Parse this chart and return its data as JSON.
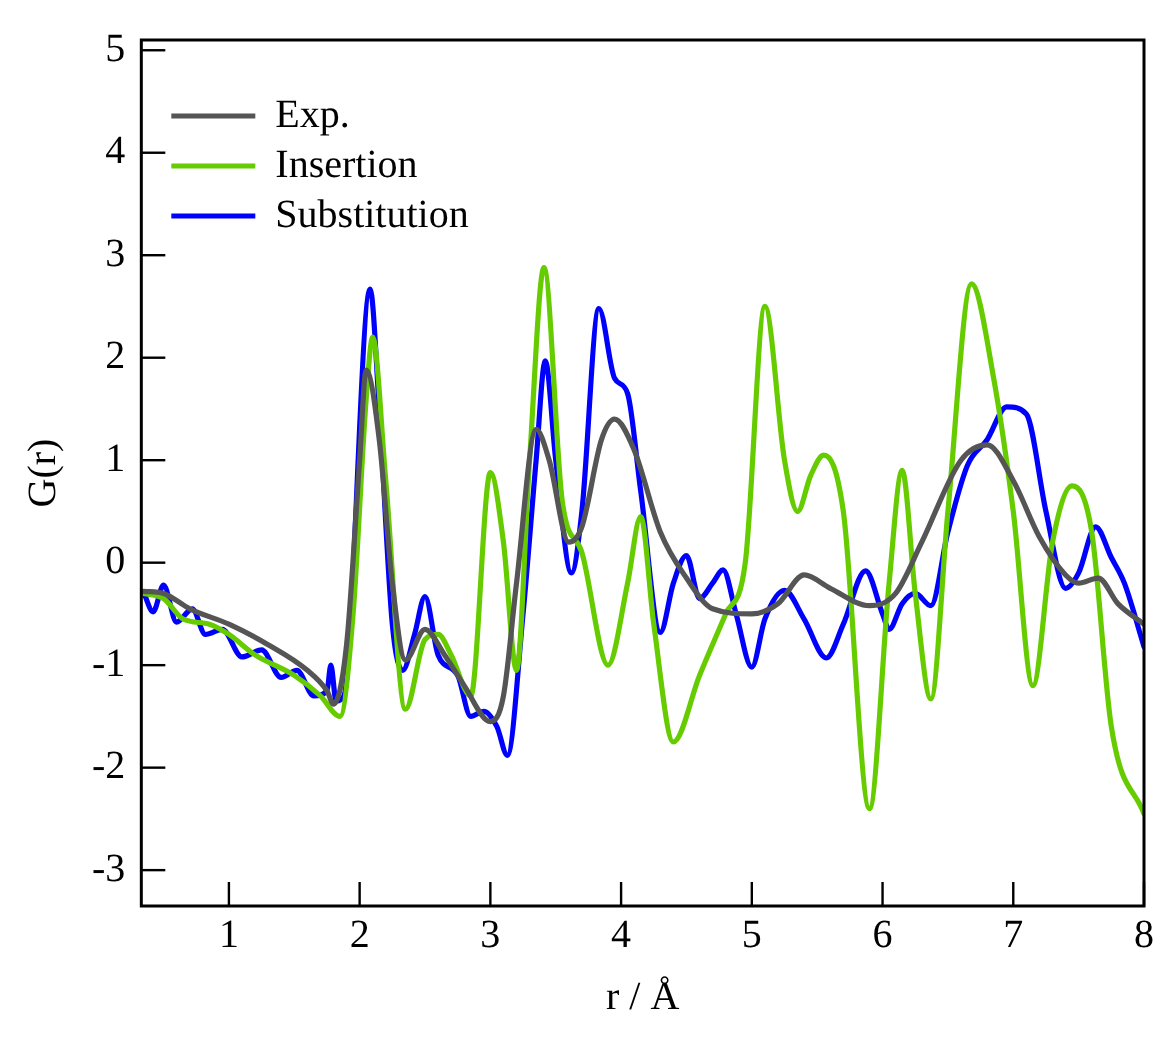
{
  "chart_data": {
    "type": "line",
    "xlabel": "r / Å",
    "ylabel": "G(r)",
    "xlim": [
      0.33,
      8.0
    ],
    "ylim": [
      -3.35,
      5.1
    ],
    "xticks": [
      1,
      2,
      3,
      4,
      5,
      6,
      7,
      8
    ],
    "yticks": [
      -3,
      -2,
      -1,
      0,
      1,
      2,
      3,
      4,
      5
    ],
    "grid": false,
    "legend": "top left",
    "series": [
      {
        "name": "Exp.",
        "color": "#555555",
        "x": [
          0.35,
          0.5,
          0.7,
          1.0,
          1.3,
          1.6,
          1.75,
          1.8,
          1.9,
          2.0,
          2.05,
          2.15,
          2.25,
          2.35,
          2.5,
          2.65,
          2.8,
          3.0,
          3.1,
          3.2,
          3.35,
          3.45,
          3.6,
          3.7,
          3.85,
          3.95,
          4.1,
          4.3,
          4.5,
          4.7,
          5.0,
          5.2,
          5.4,
          5.6,
          5.9,
          6.1,
          6.3,
          6.6,
          6.8,
          7.0,
          7.2,
          7.4,
          7.5,
          7.65,
          7.8,
          8.0
        ],
        "values": [
          -0.28,
          -0.3,
          -0.45,
          -0.6,
          -0.8,
          -1.05,
          -1.25,
          -1.38,
          -0.8,
          1.0,
          1.88,
          1.2,
          -0.2,
          -0.95,
          -0.65,
          -0.9,
          -1.2,
          -1.55,
          -1.3,
          -0.2,
          1.3,
          1.0,
          0.2,
          0.35,
          1.2,
          1.4,
          1.1,
          0.3,
          -0.15,
          -0.45,
          -0.5,
          -0.4,
          -0.12,
          -0.25,
          -0.42,
          -0.3,
          0.2,
          1.0,
          1.15,
          0.8,
          0.25,
          -0.12,
          -0.2,
          -0.15,
          -0.4,
          -0.6
        ]
      },
      {
        "name": "Insertion",
        "color": "#66cc00",
        "x": [
          0.35,
          0.5,
          0.65,
          0.85,
          1.0,
          1.2,
          1.5,
          1.7,
          1.85,
          1.95,
          2.05,
          2.1,
          2.2,
          2.35,
          2.5,
          2.6,
          2.7,
          2.85,
          3.0,
          3.1,
          3.2,
          3.3,
          3.41,
          3.55,
          3.7,
          3.9,
          4.05,
          4.15,
          4.25,
          4.4,
          4.6,
          4.8,
          4.95,
          5.1,
          5.25,
          5.35,
          5.45,
          5.55,
          5.7,
          5.9,
          6.05,
          6.15,
          6.25,
          6.37,
          6.5,
          6.68,
          6.85,
          7.0,
          7.15,
          7.3,
          7.45,
          7.6,
          7.75,
          8.0
        ],
        "values": [
          -0.3,
          -0.35,
          -0.55,
          -0.6,
          -0.7,
          -0.9,
          -1.1,
          -1.3,
          -1.5,
          -0.5,
          1.6,
          2.2,
          0.8,
          -1.43,
          -0.75,
          -0.7,
          -0.9,
          -1.3,
          0.88,
          0.2,
          -1.05,
          1.0,
          2.88,
          0.6,
          0.1,
          -1.0,
          -0.2,
          0.45,
          -0.6,
          -1.75,
          -1.1,
          -0.5,
          0.0,
          2.5,
          1.0,
          0.5,
          0.85,
          1.05,
          0.5,
          -2.4,
          -0.2,
          0.9,
          -0.3,
          -1.33,
          0.5,
          2.72,
          1.8,
          0.5,
          -1.2,
          0.2,
          0.75,
          0.3,
          -1.6,
          -2.45
        ]
      },
      {
        "name": "Substitution",
        "color": "#0000ff",
        "x": [
          0.35,
          0.42,
          0.5,
          0.6,
          0.72,
          0.82,
          0.95,
          1.1,
          1.25,
          1.4,
          1.52,
          1.65,
          1.75,
          1.78,
          1.82,
          1.88,
          2.08,
          2.15,
          2.25,
          2.33,
          2.42,
          2.5,
          2.6,
          2.75,
          2.85,
          2.95,
          3.05,
          3.13,
          3.25,
          3.35,
          3.42,
          3.5,
          3.62,
          3.7,
          3.83,
          3.95,
          4.05,
          4.15,
          4.3,
          4.4,
          4.5,
          4.6,
          4.7,
          4.78,
          4.88,
          5.0,
          5.1,
          5.25,
          5.4,
          5.57,
          5.7,
          5.87,
          6.0,
          6.05,
          6.15,
          6.25,
          6.37,
          6.5,
          6.65,
          6.8,
          6.95,
          7.1,
          7.25,
          7.4,
          7.5,
          7.63,
          7.75,
          7.85,
          8.0
        ],
        "values": [
          -0.3,
          -0.48,
          -0.22,
          -0.58,
          -0.45,
          -0.7,
          -0.65,
          -0.92,
          -0.85,
          -1.12,
          -1.05,
          -1.3,
          -1.25,
          -1.0,
          -1.35,
          -1.3,
          2.67,
          1.5,
          -0.6,
          -1.05,
          -0.7,
          -0.33,
          -0.9,
          -1.1,
          -1.5,
          -1.45,
          -1.6,
          -1.88,
          -0.5,
          1.0,
          1.97,
          1.0,
          -0.1,
          0.5,
          2.48,
          1.8,
          1.65,
          0.7,
          -0.68,
          -0.2,
          0.07,
          -0.35,
          -0.2,
          -0.07,
          -0.5,
          -1.02,
          -0.55,
          -0.27,
          -0.55,
          -0.93,
          -0.6,
          -0.08,
          -0.5,
          -0.65,
          -0.4,
          -0.3,
          -0.42,
          0.3,
          0.95,
          1.2,
          1.52,
          1.45,
          0.5,
          -0.25,
          -0.1,
          0.35,
          0.05,
          -0.2,
          -0.82
        ]
      }
    ]
  }
}
